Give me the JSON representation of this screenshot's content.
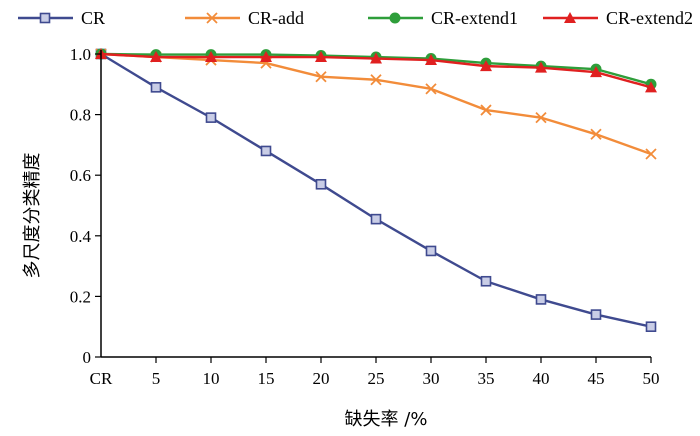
{
  "chart_data": {
    "type": "line",
    "title": "",
    "xlabel": "缺失率 /%",
    "ylabel": "多尺度分类精度",
    "x": [
      0,
      5,
      10,
      15,
      20,
      25,
      30,
      35,
      40,
      45,
      50
    ],
    "x_tick_labels": [
      "CR",
      "5",
      "10",
      "15",
      "20",
      "25",
      "30",
      "35",
      "40",
      "45",
      "50"
    ],
    "xlim": [
      0,
      50
    ],
    "ylim": [
      0,
      1.0
    ],
    "y_ticks": [
      0,
      0.2,
      0.4,
      0.6,
      0.8,
      1.0
    ],
    "y_tick_labels": [
      "0",
      "0.2",
      "0.4",
      "0.6",
      "0.8",
      "1.0"
    ],
    "grid": false,
    "legend_position": "top",
    "series": [
      {
        "name": "CR",
        "color": "#3f4a8f",
        "marker": "square",
        "values": [
          1.0,
          0.89,
          0.79,
          0.68,
          0.57,
          0.455,
          0.35,
          0.25,
          0.19,
          0.14,
          0.1
        ]
      },
      {
        "name": "CR-add",
        "color": "#f28c3a",
        "marker": "x",
        "values": [
          1.0,
          0.99,
          0.98,
          0.97,
          0.925,
          0.915,
          0.885,
          0.815,
          0.79,
          0.735,
          0.67
        ]
      },
      {
        "name": "CR-extend1",
        "color": "#2e9e3a",
        "marker": "circle",
        "values": [
          1.0,
          0.998,
          0.998,
          0.998,
          0.995,
          0.99,
          0.985,
          0.97,
          0.96,
          0.95,
          0.9
        ]
      },
      {
        "name": "CR-extend2",
        "color": "#e02020",
        "marker": "triangle",
        "values": [
          1.0,
          0.99,
          0.99,
          0.99,
          0.99,
          0.985,
          0.98,
          0.96,
          0.955,
          0.94,
          0.89
        ]
      }
    ]
  }
}
